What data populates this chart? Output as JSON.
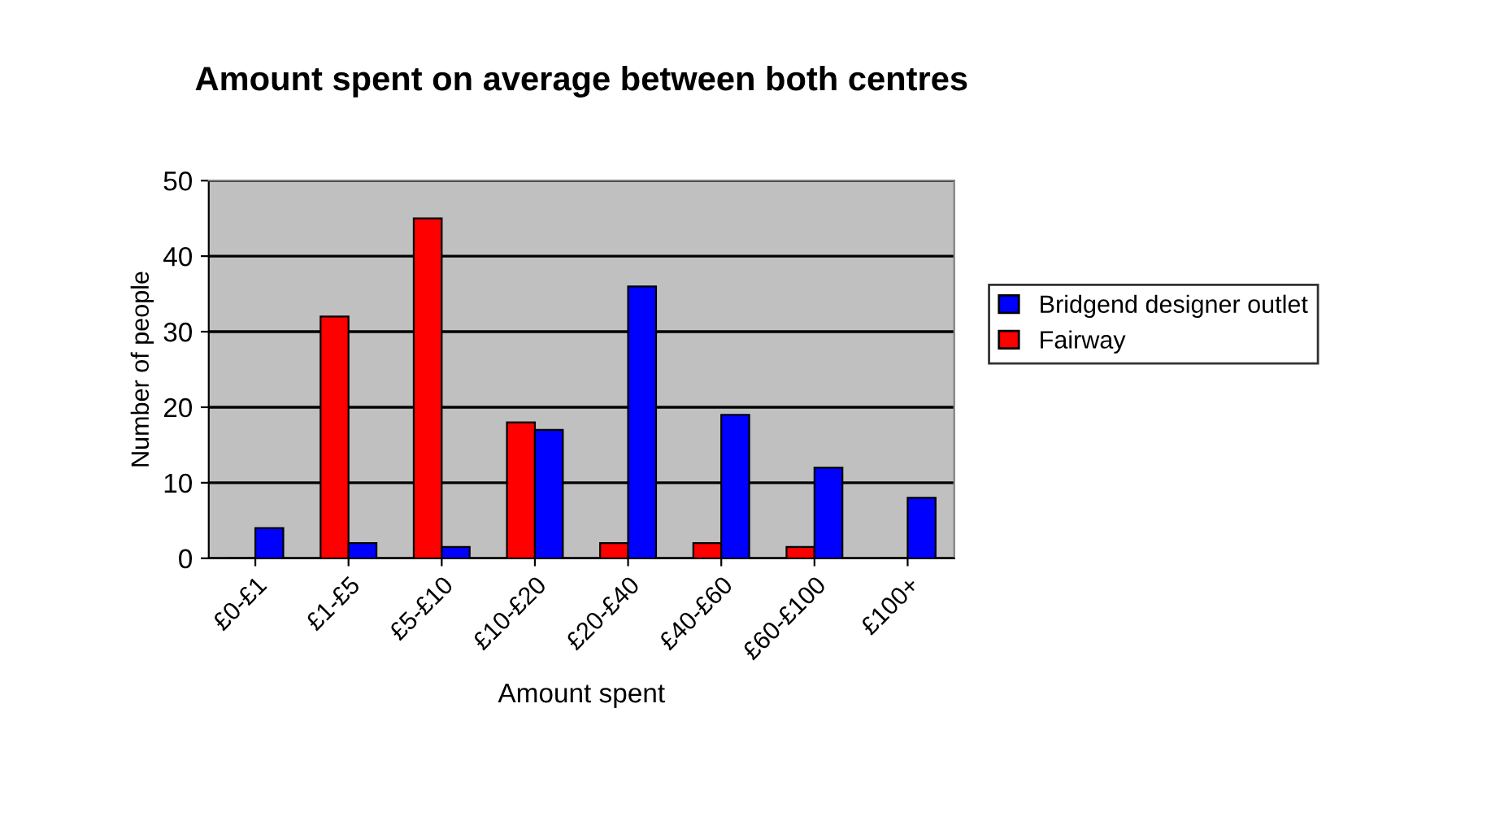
{
  "chart_data": {
    "type": "bar",
    "title": "Amount spent on average between both centres",
    "xlabel": "Amount spent",
    "ylabel": "Number of people",
    "categories": [
      "£0-£1",
      "£1-£5",
      "£5-£10",
      "£10-£20",
      "£20-£40",
      "£40-£60",
      "£60-£100",
      "£100+"
    ],
    "series": [
      {
        "name": "Fairway",
        "color": "#ff0000",
        "values": [
          0,
          32,
          45,
          18,
          2,
          2,
          1.5,
          0
        ]
      },
      {
        "name": "Bridgend designer outlet",
        "color": "#0000ff",
        "values": [
          4,
          2,
          1.5,
          17,
          36,
          19,
          12,
          8
        ]
      }
    ],
    "ylim": [
      0,
      50
    ],
    "yticks": [
      0,
      10,
      20,
      30,
      40,
      50
    ],
    "grid": "y",
    "legend": "right"
  }
}
